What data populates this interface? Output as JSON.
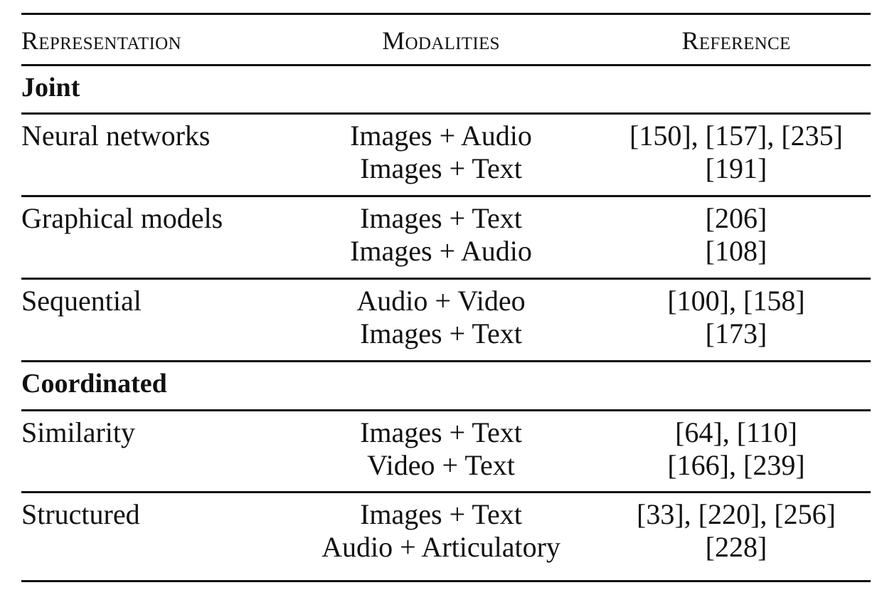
{
  "headers": {
    "representation": "Representation",
    "modalities": "Modalities",
    "reference": "Reference"
  },
  "groups": [
    {
      "label": "Joint",
      "rows": [
        {
          "representation": "Neural networks",
          "modalities": [
            "Images + Audio",
            "Images + Text"
          ],
          "references": [
            "[150], [157], [235]",
            "[191]"
          ]
        },
        {
          "representation": "Graphical models",
          "modalities": [
            "Images + Text",
            "Images + Audio"
          ],
          "references": [
            "[206]",
            "[108]"
          ]
        },
        {
          "representation": "Sequential",
          "modalities": [
            "Audio + Video",
            "Images + Text"
          ],
          "references": [
            "[100], [158]",
            "[173]"
          ]
        }
      ]
    },
    {
      "label": "Coordinated",
      "rows": [
        {
          "representation": "Similarity",
          "modalities": [
            "Images + Text",
            "Video + Text"
          ],
          "references": [
            "[64], [110]",
            "[166], [239]"
          ]
        },
        {
          "representation": "Structured",
          "modalities": [
            "Images + Text",
            "Audio + Articulatory"
          ],
          "references": [
            "[33], [220], [256]",
            "[228]"
          ]
        }
      ]
    }
  ]
}
